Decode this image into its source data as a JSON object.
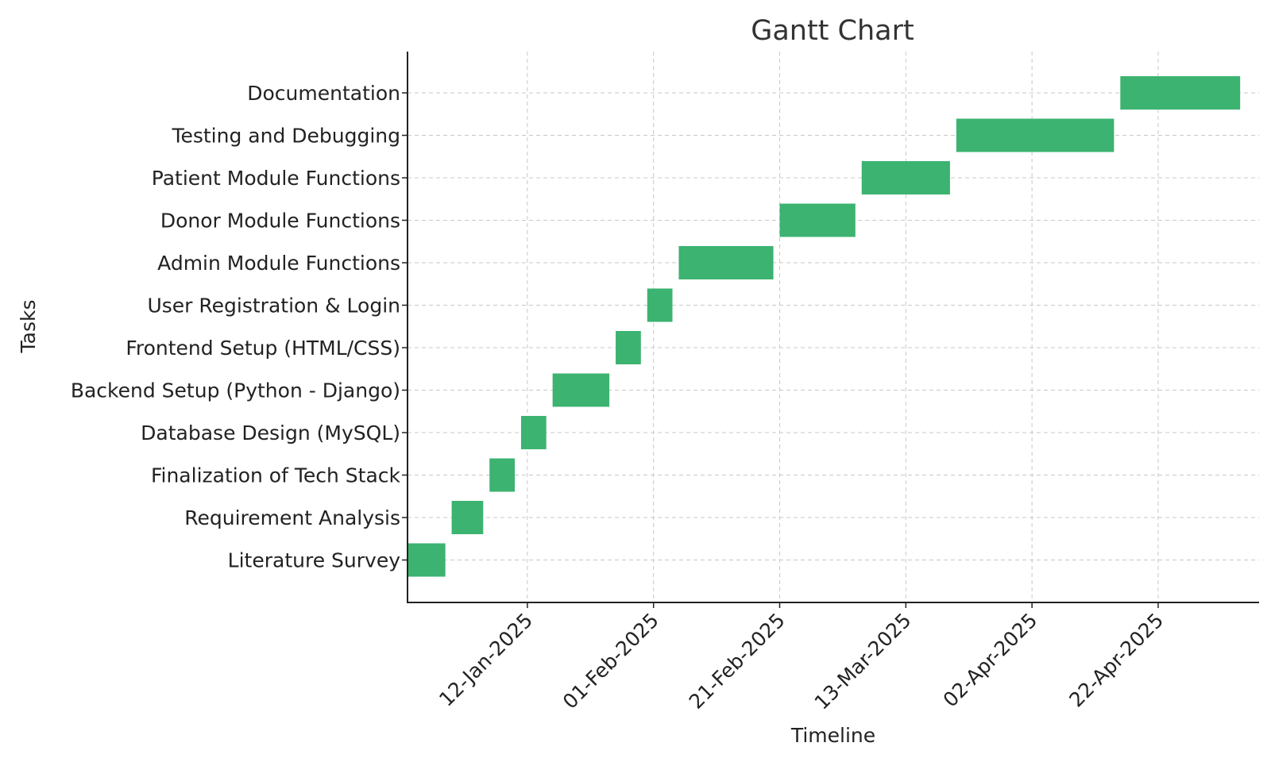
{
  "chart_data": {
    "type": "gantt",
    "title": "Gantt Chart",
    "xlabel": "Timeline",
    "ylabel": "Tasks",
    "bar_color": "#3cb371",
    "grid": true,
    "x_tick_labels": [
      "12-Jan-2025",
      "01-Feb-2025",
      "21-Feb-2025",
      "13-Mar-2025",
      "02-Apr-2025",
      "22-Apr-2025"
    ],
    "x_ticks": [
      "2025-01-12",
      "2025-02-01",
      "2025-02-21",
      "2025-03-13",
      "2025-04-02",
      "2025-04-22"
    ],
    "xlim": [
      "2024-12-24",
      "2025-05-08"
    ],
    "tasks": [
      {
        "name": "Literature Survey",
        "start": "2024-12-24",
        "end": "2024-12-30"
      },
      {
        "name": "Requirement Analysis",
        "start": "2024-12-31",
        "end": "2025-01-05"
      },
      {
        "name": "Finalization of Tech Stack",
        "start": "2025-01-06",
        "end": "2025-01-10"
      },
      {
        "name": "Database Design (MySQL)",
        "start": "2025-01-11",
        "end": "2025-01-15"
      },
      {
        "name": "Backend Setup (Python - Django)",
        "start": "2025-01-16",
        "end": "2025-01-25"
      },
      {
        "name": "Frontend Setup (HTML/CSS)",
        "start": "2025-01-26",
        "end": "2025-01-30"
      },
      {
        "name": "User Registration & Login",
        "start": "2025-01-31",
        "end": "2025-02-04"
      },
      {
        "name": "Admin Module Functions",
        "start": "2025-02-05",
        "end": "2025-02-20"
      },
      {
        "name": "Donor Module Functions",
        "start": "2025-02-21",
        "end": "2025-03-05"
      },
      {
        "name": "Patient Module Functions",
        "start": "2025-03-06",
        "end": "2025-03-20"
      },
      {
        "name": "Testing and Debugging",
        "start": "2025-03-21",
        "end": "2025-04-15"
      },
      {
        "name": "Documentation",
        "start": "2025-04-16",
        "end": "2025-05-05"
      }
    ]
  }
}
